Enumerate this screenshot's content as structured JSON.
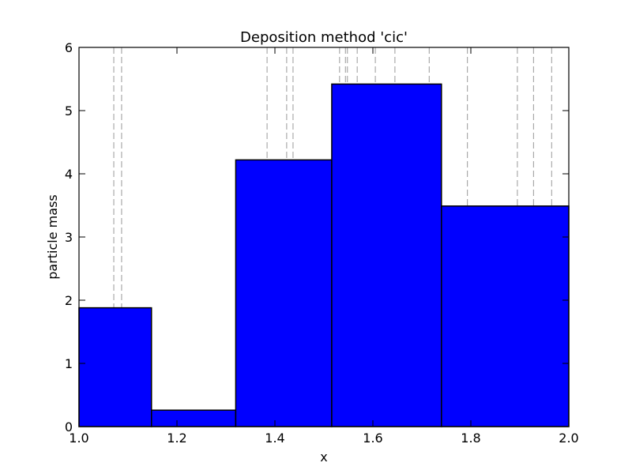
{
  "chart_data": {
    "type": "bar",
    "title": "Deposition method 'cic'",
    "xlabel": "x",
    "ylabel": "particle mass",
    "xlim": [
      1.0,
      2.0
    ],
    "ylim": [
      0,
      6
    ],
    "x_ticks": [
      "1.0",
      "1.2",
      "1.4",
      "1.6",
      "1.8",
      "2.0"
    ],
    "y_ticks": [
      "0",
      "1",
      "2",
      "3",
      "4",
      "5",
      "6"
    ],
    "bins": [
      {
        "x_start": 1.0,
        "x_end": 1.148,
        "value": 1.88
      },
      {
        "x_start": 1.148,
        "x_end": 1.32,
        "value": 0.26
      },
      {
        "x_start": 1.32,
        "x_end": 1.516,
        "value": 4.22
      },
      {
        "x_start": 1.516,
        "x_end": 1.74,
        "value": 5.42
      },
      {
        "x_start": 1.74,
        "x_end": 2.0,
        "value": 3.49
      }
    ],
    "particle_positions": [
      1.071,
      1.087,
      1.384,
      1.424,
      1.437,
      1.532,
      1.544,
      1.548,
      1.568,
      1.605,
      1.645,
      1.715,
      1.793,
      1.895,
      1.928,
      1.965
    ],
    "grid": false,
    "legend": "none",
    "colors": {
      "bar_fill": "#0000ff",
      "bar_edge": "#000000",
      "particle_line": "#999999",
      "frame": "#000000"
    }
  }
}
